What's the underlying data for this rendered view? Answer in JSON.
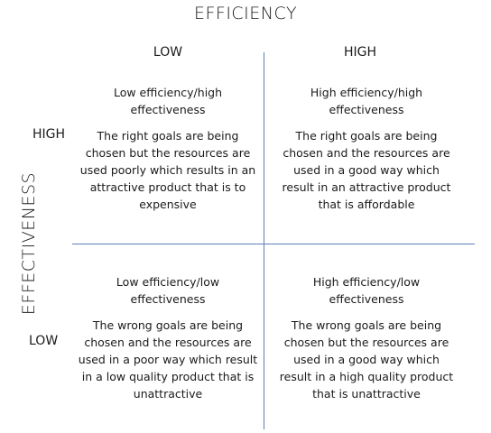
{
  "title": "EFFICIENCY",
  "y_axis_title": "EFFECTIVENESS",
  "columns": {
    "low": "LOW",
    "high": "HIGH"
  },
  "rows": {
    "high": "HIGH",
    "low": "LOW"
  },
  "quadrants": {
    "top_left": {
      "heading": "Low efficiency/high effectiveness",
      "body": "The right goals are being chosen but the resources are used poorly which results in an attractive product that is to expensive"
    },
    "top_right": {
      "heading": "High efficiency/high effectiveness",
      "body": "The right goals are being chosen and the resources are used in a good way which result in an attractive product that is affordable"
    },
    "bottom_left": {
      "heading": "Low efficiency/low effectiveness",
      "body": "The wrong goals are being chosen and the resources are used in a poor way which result in a low quality product that is unattractive"
    },
    "bottom_right": {
      "heading": "High efficiency/low effectiveness",
      "body": "The wrong goals are being chosen but the resources are used in a good way which result in a high quality product that is unattractive"
    }
  },
  "colors": {
    "axis_line": "#5b7fb4",
    "text": "#1a1a1a"
  }
}
